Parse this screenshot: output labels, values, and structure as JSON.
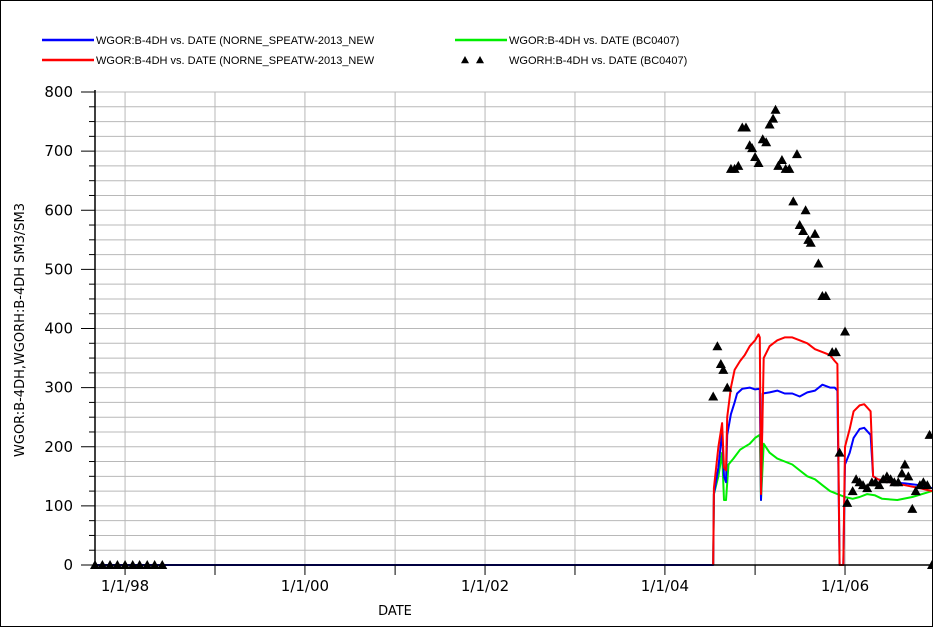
{
  "chart_data": {
    "type": "line",
    "title": "",
    "xlabel": "DATE",
    "ylabel": "WGOR:B-4DH,WGORH:B-4DH  SM3/SM3",
    "xlim": [
      "1997-09-01",
      "2006-12-20"
    ],
    "ylim": [
      0,
      800
    ],
    "grid": true,
    "legend_position": "top",
    "x_ticks": [
      {
        "date": "1998-01-01",
        "label": "1/1/98"
      },
      {
        "date": "2000-01-01",
        "label": "1/1/00"
      },
      {
        "date": "2002-01-01",
        "label": "1/1/02"
      },
      {
        "date": "2004-01-01",
        "label": "1/1/04"
      },
      {
        "date": "2006-01-01",
        "label": "1/1/06"
      }
    ],
    "y_ticks": [
      0,
      100,
      200,
      300,
      400,
      500,
      600,
      700,
      800
    ],
    "series": [
      {
        "name": "WGOR:B-4DH  vs.  DATE (NORNE_SPEATW-2013_NEW",
        "color": "#0000ff",
        "style": "line",
        "points": [
          [
            "1997-09-01",
            0
          ],
          [
            "2004-07-15",
            0
          ],
          [
            "2004-07-18",
            120
          ],
          [
            "2004-08-05",
            165
          ],
          [
            "2004-08-20",
            225
          ],
          [
            "2004-08-28",
            150
          ],
          [
            "2004-09-05",
            140
          ],
          [
            "2004-09-10",
            220
          ],
          [
            "2004-09-25",
            255
          ],
          [
            "2004-10-10",
            275
          ],
          [
            "2004-10-20",
            290
          ],
          [
            "2004-11-10",
            298
          ],
          [
            "2004-12-10",
            300
          ],
          [
            "2005-01-01",
            297
          ],
          [
            "2005-01-20",
            298
          ],
          [
            "2005-01-25",
            110
          ],
          [
            "2005-02-01",
            290
          ],
          [
            "2005-03-01",
            292
          ],
          [
            "2005-04-01",
            295
          ],
          [
            "2005-05-01",
            290
          ],
          [
            "2005-06-01",
            290
          ],
          [
            "2005-07-01",
            285
          ],
          [
            "2005-08-01",
            292
          ],
          [
            "2005-09-01",
            295
          ],
          [
            "2005-10-01",
            305
          ],
          [
            "2005-11-01",
            300
          ],
          [
            "2005-11-20",
            300
          ],
          [
            "2005-12-01",
            295
          ],
          [
            "2005-12-10",
            0
          ],
          [
            "2005-12-25",
            0
          ],
          [
            "2006-01-01",
            170
          ],
          [
            "2006-01-20",
            190
          ],
          [
            "2006-02-05",
            215
          ],
          [
            "2006-03-01",
            230
          ],
          [
            "2006-03-20",
            232
          ],
          [
            "2006-04-15",
            220
          ],
          [
            "2006-04-25",
            150
          ],
          [
            "2006-05-15",
            145
          ],
          [
            "2006-07-01",
            140
          ],
          [
            "2006-09-01",
            138
          ],
          [
            "2006-11-01",
            135
          ],
          [
            "2006-12-20",
            130
          ]
        ]
      },
      {
        "name": "WGOR:B-4DH  vs.  DATE (BC0407)",
        "color": "#00ee00",
        "style": "line",
        "points": [
          [
            "2004-07-15",
            0
          ],
          [
            "2004-07-18",
            120
          ],
          [
            "2004-08-05",
            150
          ],
          [
            "2004-08-20",
            190
          ],
          [
            "2004-08-28",
            110
          ],
          [
            "2004-09-05",
            110
          ],
          [
            "2004-09-15",
            170
          ],
          [
            "2004-10-05",
            180
          ],
          [
            "2004-11-01",
            195
          ],
          [
            "2004-11-20",
            200
          ],
          [
            "2004-12-10",
            205
          ],
          [
            "2005-01-01",
            215
          ],
          [
            "2005-01-20",
            220
          ],
          [
            "2005-01-25",
            110
          ],
          [
            "2005-02-05",
            205
          ],
          [
            "2005-03-01",
            190
          ],
          [
            "2005-04-01",
            180
          ],
          [
            "2005-05-01",
            175
          ],
          [
            "2005-06-01",
            170
          ],
          [
            "2005-07-01",
            160
          ],
          [
            "2005-08-01",
            150
          ],
          [
            "2005-09-01",
            145
          ],
          [
            "2005-10-01",
            135
          ],
          [
            "2005-11-01",
            125
          ],
          [
            "2005-12-01",
            120
          ],
          [
            "2006-01-01",
            115
          ],
          [
            "2006-02-01",
            112
          ],
          [
            "2006-03-01",
            115
          ],
          [
            "2006-04-01",
            120
          ],
          [
            "2006-05-01",
            118
          ],
          [
            "2006-06-01",
            112
          ],
          [
            "2006-08-01",
            110
          ],
          [
            "2006-10-01",
            115
          ],
          [
            "2006-12-20",
            125
          ]
        ]
      },
      {
        "name": "WGOR:B-4DH  vs.  DATE (NORNE_SPEATW-2013_NEW",
        "color": "#ff0000",
        "style": "line",
        "points": [
          [
            "2004-07-15",
            0
          ],
          [
            "2004-07-18",
            130
          ],
          [
            "2004-08-05",
            200
          ],
          [
            "2004-08-20",
            240
          ],
          [
            "2004-08-28",
            165
          ],
          [
            "2004-09-05",
            160
          ],
          [
            "2004-09-10",
            250
          ],
          [
            "2004-09-25",
            300
          ],
          [
            "2004-10-10",
            330
          ],
          [
            "2004-11-01",
            345
          ],
          [
            "2004-11-20",
            355
          ],
          [
            "2004-12-10",
            370
          ],
          [
            "2005-01-01",
            380
          ],
          [
            "2005-01-15",
            390
          ],
          [
            "2005-01-20",
            385
          ],
          [
            "2005-01-25",
            120
          ],
          [
            "2005-02-05",
            350
          ],
          [
            "2005-03-01",
            370
          ],
          [
            "2005-04-01",
            380
          ],
          [
            "2005-05-01",
            385
          ],
          [
            "2005-06-01",
            385
          ],
          [
            "2005-07-01",
            380
          ],
          [
            "2005-08-01",
            375
          ],
          [
            "2005-09-01",
            365
          ],
          [
            "2005-10-01",
            360
          ],
          [
            "2005-11-01",
            355
          ],
          [
            "2005-11-20",
            345
          ],
          [
            "2005-12-01",
            340
          ],
          [
            "2005-12-10",
            0
          ],
          [
            "2005-12-25",
            0
          ],
          [
            "2006-01-01",
            200
          ],
          [
            "2006-01-20",
            230
          ],
          [
            "2006-02-05",
            260
          ],
          [
            "2006-03-01",
            270
          ],
          [
            "2006-03-20",
            272
          ],
          [
            "2006-04-15",
            260
          ],
          [
            "2006-04-25",
            150
          ],
          [
            "2006-05-15",
            145
          ],
          [
            "2006-07-01",
            140
          ],
          [
            "2006-09-01",
            135
          ],
          [
            "2006-11-01",
            130
          ],
          [
            "2006-12-20",
            125
          ]
        ]
      },
      {
        "name": "WGORH:B-4DH  vs.  DATE (BC0407)",
        "color": "#000000",
        "style": "triangles",
        "points": [
          [
            "1997-09-01",
            0
          ],
          [
            "1997-10-01",
            0
          ],
          [
            "1997-11-01",
            0
          ],
          [
            "1997-12-01",
            0
          ],
          [
            "1998-01-01",
            0
          ],
          [
            "1998-02-01",
            0
          ],
          [
            "1998-03-01",
            0
          ],
          [
            "1998-04-01",
            0
          ],
          [
            "1998-05-01",
            0
          ],
          [
            "1998-06-01",
            0
          ],
          [
            "2004-07-15",
            285
          ],
          [
            "2004-08-01",
            370
          ],
          [
            "2004-08-15",
            340
          ],
          [
            "2004-08-25",
            330
          ],
          [
            "2004-09-10",
            300
          ],
          [
            "2004-09-25",
            670
          ],
          [
            "2004-10-10",
            670
          ],
          [
            "2004-10-25",
            675
          ],
          [
            "2004-11-10",
            740
          ],
          [
            "2004-11-25",
            740
          ],
          [
            "2004-12-10",
            710
          ],
          [
            "2004-12-20",
            705
          ],
          [
            "2005-01-01",
            690
          ],
          [
            "2005-01-15",
            680
          ],
          [
            "2005-02-01",
            720
          ],
          [
            "2005-02-15",
            715
          ],
          [
            "2005-03-01",
            745
          ],
          [
            "2005-03-15",
            755
          ],
          [
            "2005-03-25",
            770
          ],
          [
            "2005-04-05",
            675
          ],
          [
            "2005-04-20",
            685
          ],
          [
            "2005-05-05",
            670
          ],
          [
            "2005-05-20",
            670
          ],
          [
            "2005-06-05",
            615
          ],
          [
            "2005-06-20",
            695
          ],
          [
            "2005-07-01",
            575
          ],
          [
            "2005-07-15",
            565
          ],
          [
            "2005-07-25",
            600
          ],
          [
            "2005-08-05",
            550
          ],
          [
            "2005-08-15",
            545
          ],
          [
            "2005-09-01",
            560
          ],
          [
            "2005-09-15",
            510
          ],
          [
            "2005-10-01",
            455
          ],
          [
            "2005-10-15",
            455
          ],
          [
            "2005-11-10",
            360
          ],
          [
            "2005-11-25",
            360
          ],
          [
            "2005-12-10",
            190
          ],
          [
            "2006-01-01",
            395
          ],
          [
            "2006-01-10",
            105
          ],
          [
            "2006-02-01",
            125
          ],
          [
            "2006-02-15",
            145
          ],
          [
            "2006-03-01",
            140
          ],
          [
            "2006-03-15",
            135
          ],
          [
            "2006-04-01",
            130
          ],
          [
            "2006-04-20",
            140
          ],
          [
            "2006-05-05",
            140
          ],
          [
            "2006-05-20",
            135
          ],
          [
            "2006-06-05",
            145
          ],
          [
            "2006-06-20",
            150
          ],
          [
            "2006-07-05",
            145
          ],
          [
            "2006-07-20",
            140
          ],
          [
            "2006-08-05",
            140
          ],
          [
            "2006-08-20",
            155
          ],
          [
            "2006-09-01",
            170
          ],
          [
            "2006-09-15",
            150
          ],
          [
            "2006-10-01",
            95
          ],
          [
            "2006-10-15",
            125
          ],
          [
            "2006-11-01",
            135
          ],
          [
            "2006-11-15",
            140
          ],
          [
            "2006-12-01",
            135
          ],
          [
            "2006-12-10",
            220
          ],
          [
            "2006-12-20",
            0
          ]
        ]
      }
    ]
  }
}
